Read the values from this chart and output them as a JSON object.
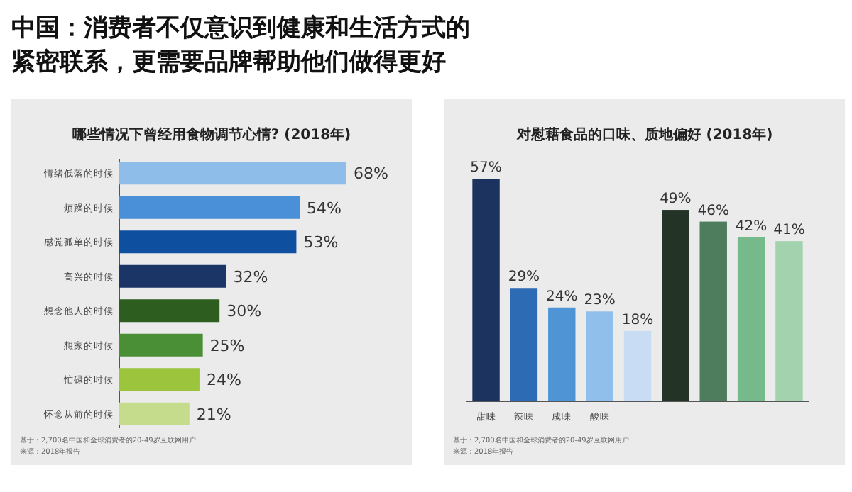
{
  "chart_data": [
    {
      "type": "other",
      "title": "中国：消费者不仅意识到健康和生活方式的紧密联系，更需要品牌帮助他们做得更好"
    },
    {
      "type": "bar",
      "orientation": "horizontal",
      "title": "哪些情况下曾经用食物调节心情? (2018年)",
      "categories": [
        "情绪低落的时候",
        "烦躁的时候",
        "感觉孤单的时候",
        "高兴的时候",
        "想念他人的时候",
        "想家的时候",
        "忙碌的时候",
        "怀念从前的时候"
      ],
      "values": [
        68,
        54,
        53,
        32,
        30,
        25,
        24,
        21
      ],
      "value_labels": [
        "68%",
        "54%",
        "53%",
        "32%",
        "30%",
        "25%",
        "24%",
        "21%"
      ],
      "colors": [
        "#8dbde8",
        "#4a90d9",
        "#0f4fa0",
        "#1b3566",
        "#2e5e1f",
        "#4a8f35",
        "#9cc43c",
        "#c5dc8c"
      ],
      "annotations": [
        "基于：2,700名中国和全球消费者的20-49岁互联网用户",
        "来源：2018年报告"
      ]
    },
    {
      "type": "bar",
      "title": "对慰藉食品的口味、质地偏好 (2018年)",
      "categories": [
        "甜味",
        "辣味",
        "咸味",
        "酸味",
        null,
        null,
        null,
        null,
        null
      ],
      "values": [
        57,
        29,
        24,
        23,
        18,
        49,
        46,
        42,
        41
      ],
      "value_labels": [
        "57%",
        "29%",
        "24%",
        "23%",
        "18%",
        "49%",
        "46%",
        "42%",
        "41%"
      ],
      "colors": [
        "#1b335e",
        "#2e6bb5",
        "#4f95d6",
        "#8fbfea",
        "#c8ddf4",
        "#233426",
        "#4e7d5e",
        "#76b98a",
        "#a3d3ae"
      ],
      "annotations": [
        "基于：2,700名中国和全球消费者的20-49岁互联网用户",
        "来源：2018年报告"
      ]
    }
  ]
}
